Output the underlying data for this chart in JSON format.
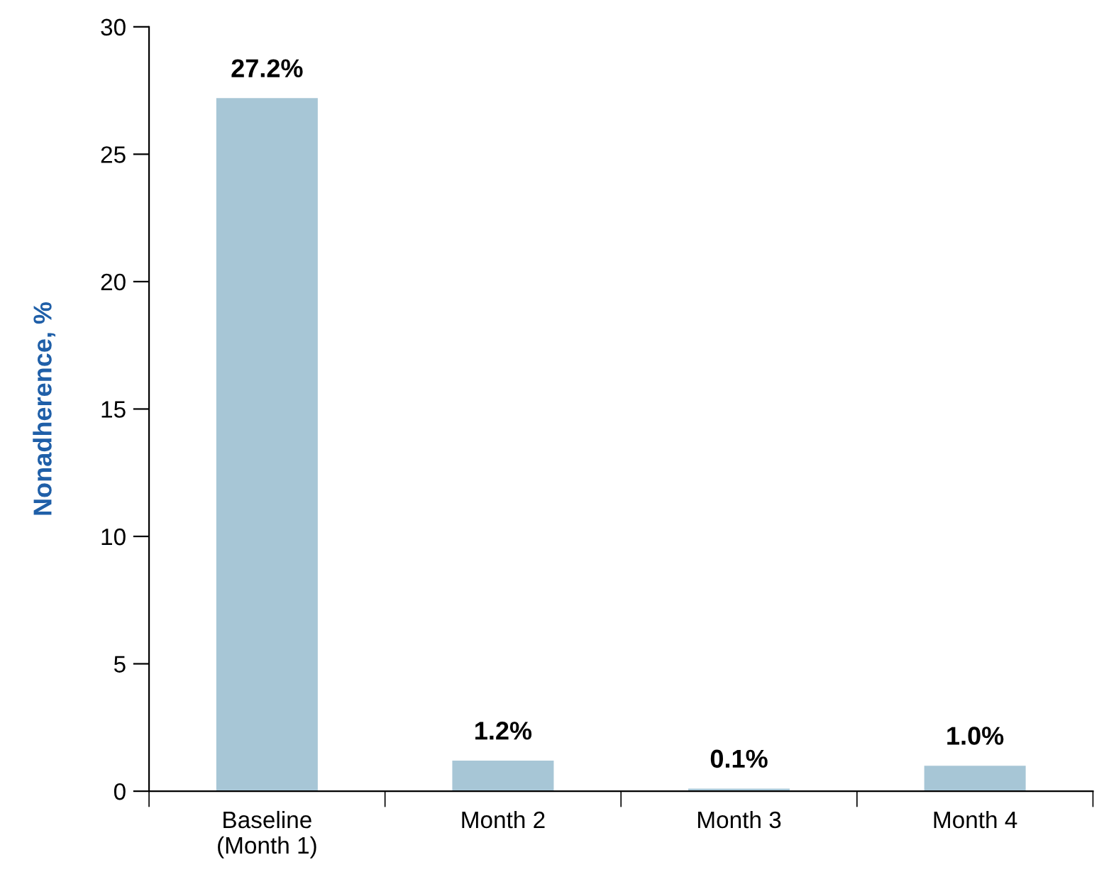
{
  "chart_data": {
    "type": "bar",
    "ylabel": "Nonadherence, %",
    "categories": [
      "Baseline\n(Month 1)",
      "Month 2",
      "Month 3",
      "Month 4"
    ],
    "values": [
      27.2,
      1.2,
      0.1,
      1.0
    ],
    "value_labels": [
      "27.2%",
      "1.2%",
      "0.1%",
      "1.0%"
    ],
    "color": "#a7c6d6",
    "ylim": [
      0,
      30
    ],
    "yticks": [
      0,
      5,
      10,
      15,
      20,
      25,
      30
    ],
    "grid": false,
    "legend": false
  }
}
